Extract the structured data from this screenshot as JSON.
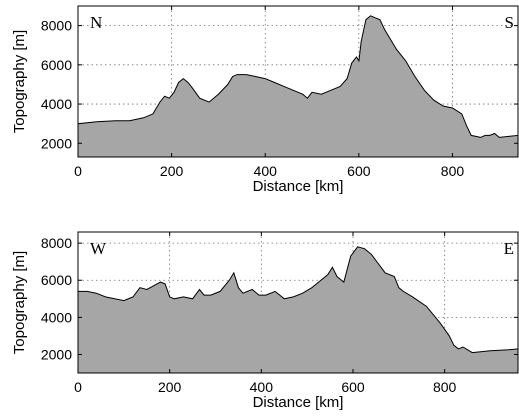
{
  "chart_data": [
    {
      "type": "area",
      "xlabel": "Distance [km]",
      "ylabel": "Topography [m]",
      "xlim": [
        0,
        940
      ],
      "ylim": [
        1300,
        9000
      ],
      "xticks": [
        0,
        200,
        400,
        600,
        800
      ],
      "yticks": [
        2000,
        4000,
        6000,
        8000
      ],
      "grid": true,
      "corner_left": "N",
      "corner_right": "S",
      "x": [
        0,
        40,
        80,
        110,
        140,
        160,
        175,
        185,
        195,
        205,
        215,
        225,
        235,
        245,
        260,
        280,
        300,
        320,
        330,
        340,
        360,
        380,
        400,
        420,
        440,
        460,
        480,
        490,
        500,
        520,
        540,
        560,
        575,
        585,
        595,
        600,
        605,
        615,
        625,
        635,
        645,
        655,
        665,
        680,
        700,
        720,
        740,
        760,
        780,
        800,
        820,
        830,
        840,
        860,
        870,
        880,
        890,
        900,
        920,
        940
      ],
      "y": [
        3000,
        3100,
        3150,
        3150,
        3300,
        3500,
        4100,
        4400,
        4300,
        4600,
        5100,
        5300,
        5100,
        4800,
        4300,
        4100,
        4500,
        5000,
        5400,
        5500,
        5500,
        5400,
        5300,
        5100,
        4900,
        4700,
        4500,
        4300,
        4600,
        4500,
        4700,
        4900,
        5300,
        6100,
        6400,
        6200,
        7200,
        8300,
        8500,
        8400,
        8300,
        7800,
        7400,
        6800,
        6200,
        5400,
        4700,
        4200,
        3900,
        3800,
        3500,
        2900,
        2400,
        2300,
        2400,
        2400,
        2500,
        2300,
        2350,
        2400
      ]
    },
    {
      "type": "area",
      "xlabel": "Distance [km]",
      "ylabel": "Topography [m]",
      "xlim": [
        0,
        960
      ],
      "ylim": [
        1000,
        8600
      ],
      "xticks": [
        0,
        200,
        400,
        600,
        800
      ],
      "yticks": [
        2000,
        4000,
        6000,
        8000
      ],
      "grid": true,
      "corner_left": "W",
      "corner_right": "E",
      "x": [
        0,
        20,
        40,
        60,
        80,
        100,
        120,
        135,
        150,
        165,
        180,
        190,
        200,
        210,
        230,
        250,
        265,
        275,
        290,
        310,
        330,
        340,
        350,
        360,
        380,
        395,
        410,
        430,
        450,
        470,
        490,
        510,
        530,
        545,
        555,
        565,
        580,
        595,
        610,
        625,
        640,
        655,
        670,
        690,
        700,
        710,
        730,
        760,
        790,
        810,
        820,
        830,
        840,
        860,
        900,
        940,
        960
      ],
      "y": [
        5400,
        5400,
        5300,
        5100,
        5000,
        4900,
        5100,
        5600,
        5500,
        5700,
        5900,
        5800,
        5100,
        5000,
        5100,
        5000,
        5500,
        5200,
        5200,
        5400,
        6000,
        6400,
        5600,
        5300,
        5500,
        5200,
        5200,
        5400,
        5000,
        5100,
        5300,
        5600,
        6000,
        6300,
        6700,
        6200,
        5900,
        7300,
        7800,
        7700,
        7400,
        6900,
        6400,
        6200,
        5600,
        5400,
        5100,
        4600,
        3700,
        3000,
        2500,
        2300,
        2400,
        2100,
        2200,
        2250,
        2300
      ]
    }
  ]
}
